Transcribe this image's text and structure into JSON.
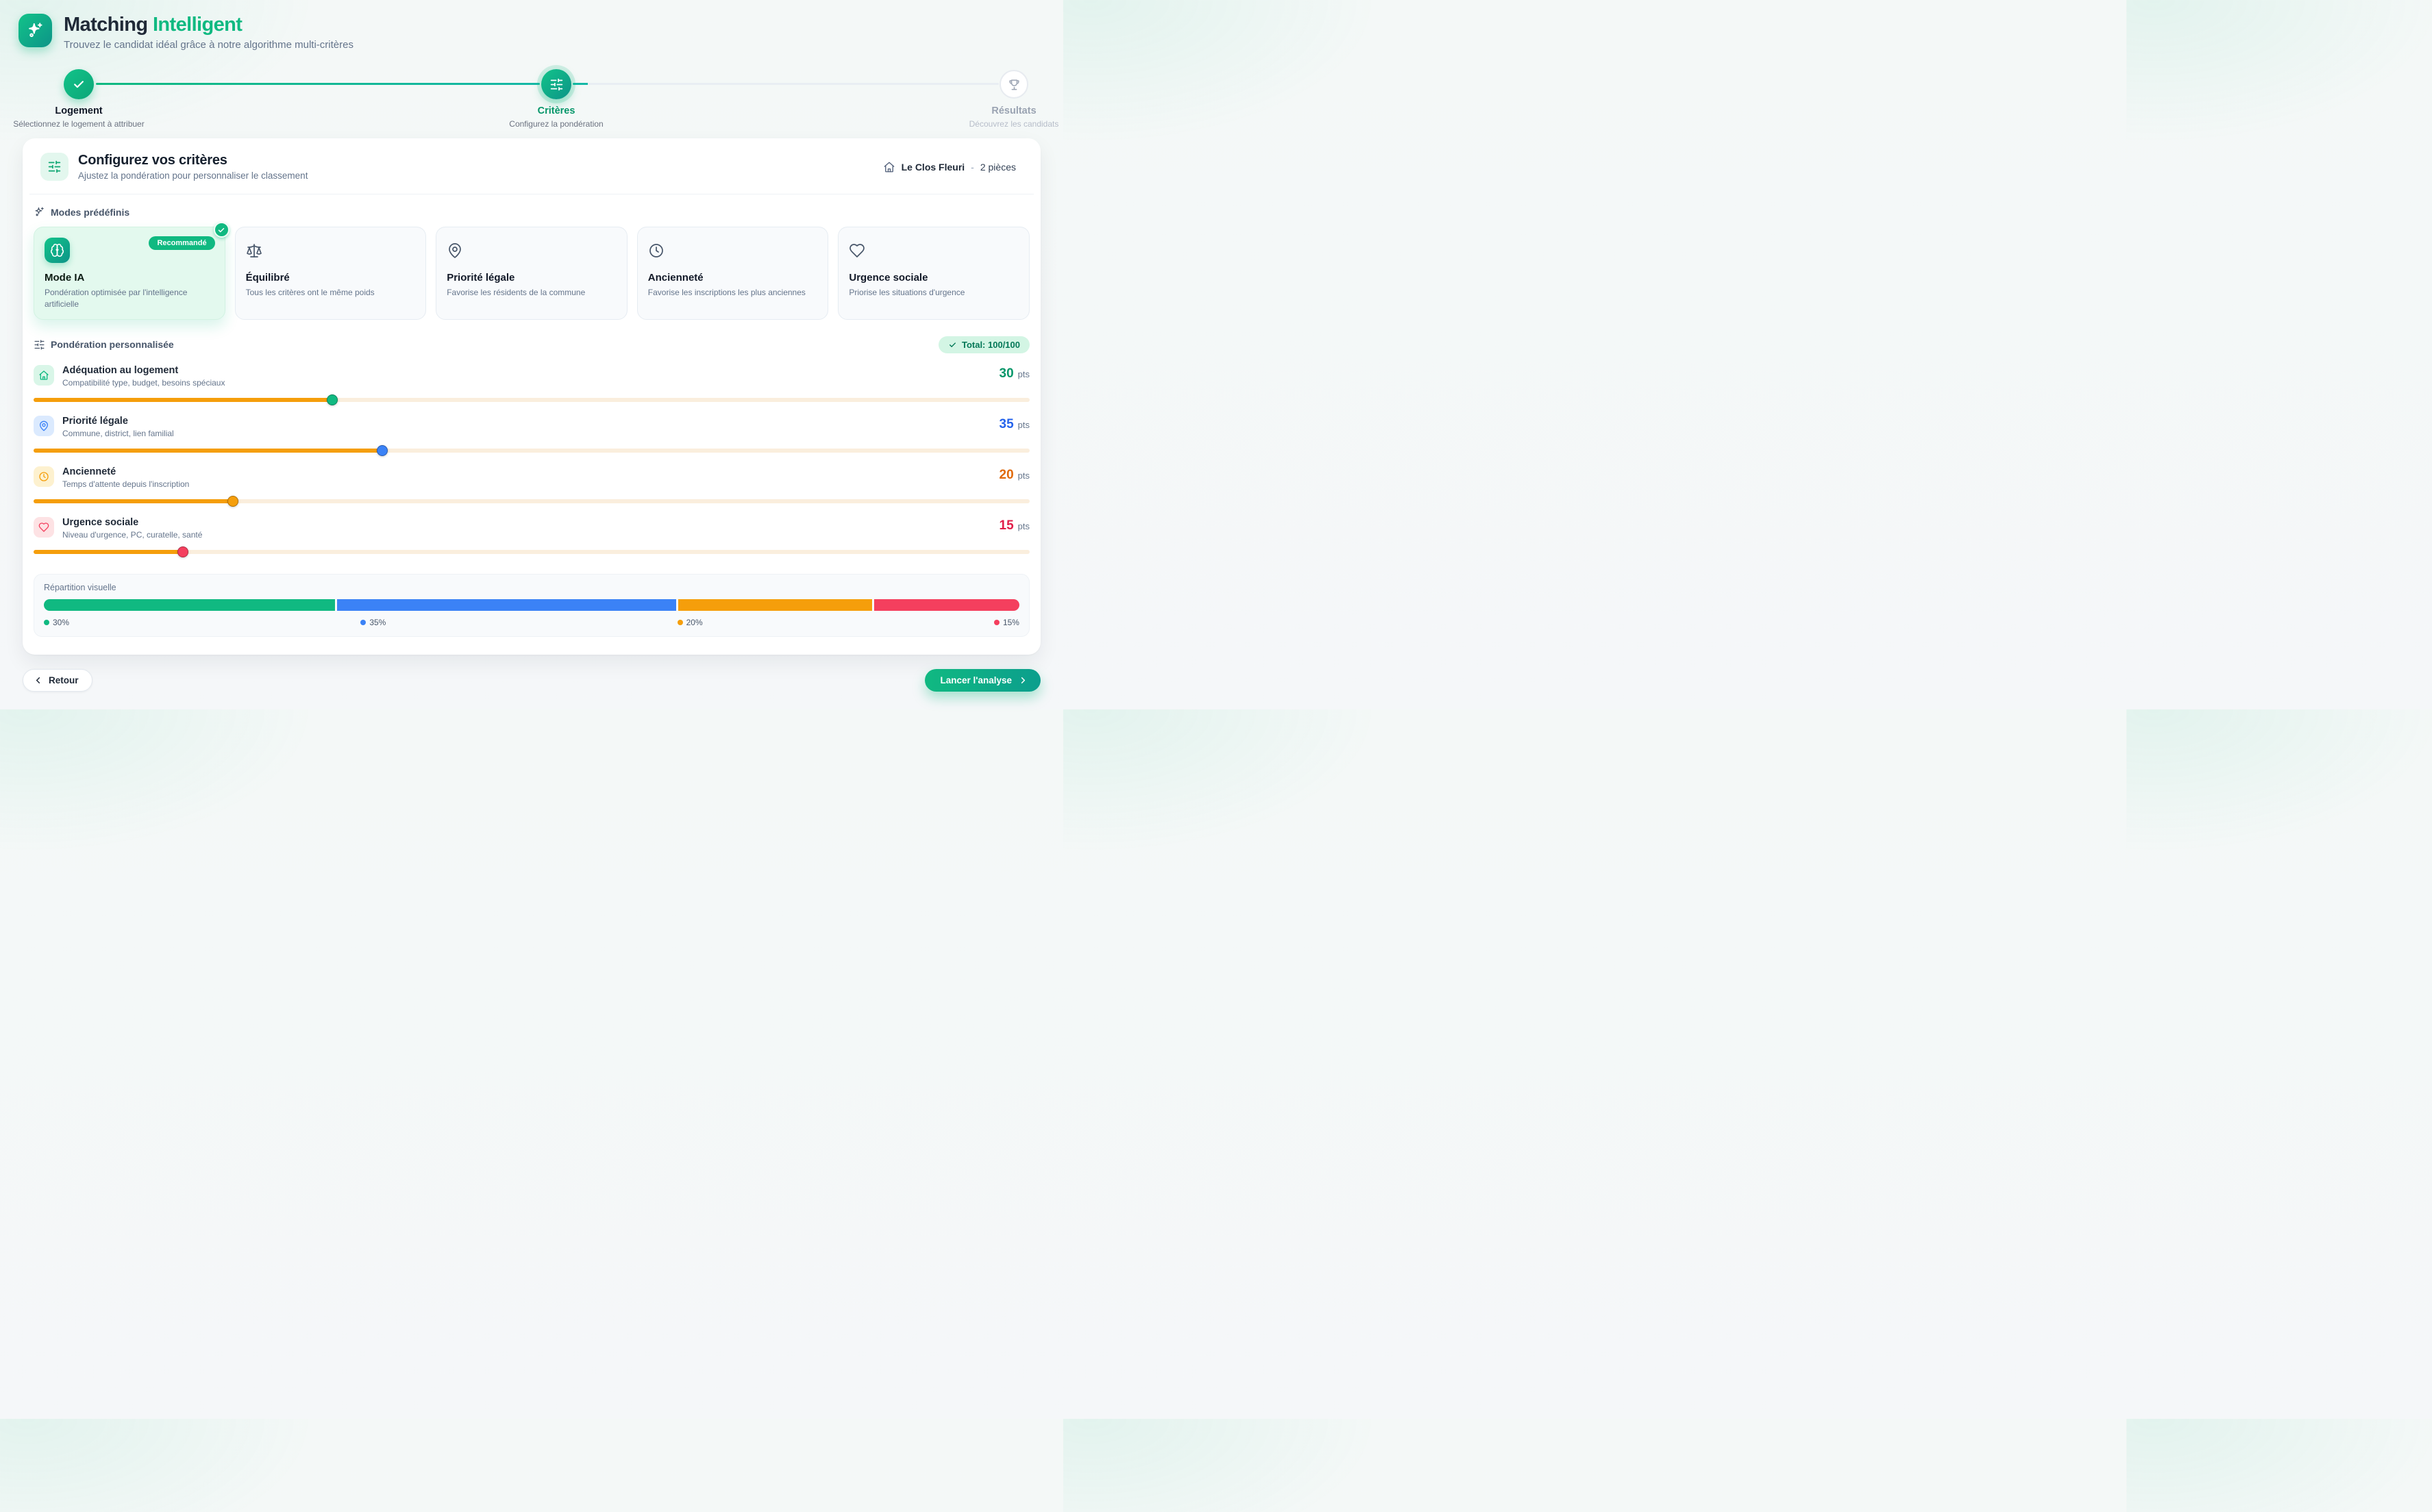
{
  "header": {
    "title_primary": "Matching",
    "title_accent": "Intelligent",
    "subtitle": "Trouvez le candidat idéal grâce à notre algorithme multi-critères"
  },
  "steps": [
    {
      "label": "Logement",
      "sublabel": "Sélectionnez le logement à attribuer",
      "state": "done",
      "icon": "check"
    },
    {
      "label": "Critères",
      "sublabel": "Configurez la pondération",
      "state": "active",
      "icon": "sliders"
    },
    {
      "label": "Résultats",
      "sublabel": "Découvrez les candidats",
      "state": "upcoming",
      "icon": "trophy"
    }
  ],
  "panel": {
    "title": "Configurez vos critères",
    "subtitle": "Ajustez la pondération pour personnaliser le classement",
    "property": {
      "name": "Le Clos Fleuri",
      "separator": "-",
      "detail": "2 pièces"
    }
  },
  "modes": {
    "section_label": "Modes prédéfinis",
    "cards": [
      {
        "title": "Mode IA",
        "description": "Pondération optimisée par l'intelligence artificielle",
        "badge": "Recommandé",
        "selected": true,
        "icon": "brain"
      },
      {
        "title": "Équilibré",
        "description": "Tous les critères ont le même poids",
        "selected": false,
        "icon": "scale"
      },
      {
        "title": "Priorité légale",
        "description": "Favorise les résidents de la commune",
        "selected": false,
        "icon": "map-pin"
      },
      {
        "title": "Ancienneté",
        "description": "Favorise les inscriptions les plus anciennes",
        "selected": false,
        "icon": "clock"
      },
      {
        "title": "Urgence sociale",
        "description": "Priorise les situations d'urgence",
        "selected": false,
        "icon": "heart"
      }
    ]
  },
  "weights": {
    "section_label": "Pondération personnalisée",
    "total_badge": "Total: 100/100",
    "unit": "pts",
    "track_fill": "#f59e0b",
    "track_bg": "#faeedd",
    "criteria": [
      {
        "title": "Adéquation au logement",
        "description": "Compatibilité type, budget, besoins spéciaux",
        "value": "30",
        "percent": 30,
        "color": "#10b981",
        "value_color": "#059669",
        "icon_bg": "#d9f6e8",
        "icon": "home"
      },
      {
        "title": "Priorité légale",
        "description": "Commune, district, lien familial",
        "value": "35",
        "percent": 35,
        "color": "#3b82f6",
        "value_color": "#2563eb",
        "icon_bg": "#dbeafe",
        "icon": "map-pin"
      },
      {
        "title": "Ancienneté",
        "description": "Temps d'attente depuis l'inscription",
        "value": "20",
        "percent": 20,
        "color": "#f59e0b",
        "value_color": "#e0690b",
        "icon_bg": "#fdf1cf",
        "icon": "clock"
      },
      {
        "title": "Urgence sociale",
        "description": "Niveau d'urgence, PC, curatelle, santé",
        "value": "15",
        "percent": 15,
        "color": "#f43f5e",
        "value_color": "#e11d48",
        "icon_bg": "#fde2e4",
        "icon": "heart"
      }
    ]
  },
  "distribution": {
    "label": "Répartition visuelle",
    "segments": [
      {
        "label": "30%",
        "percent": 30,
        "color": "#10b981"
      },
      {
        "label": "35%",
        "percent": 35,
        "color": "#3b82f6"
      },
      {
        "label": "20%",
        "percent": 20,
        "color": "#f59e0b"
      },
      {
        "label": "15%",
        "percent": 15,
        "color": "#f43f5e"
      }
    ]
  },
  "footer": {
    "back_label": "Retour",
    "submit_label": "Lancer l'analyse"
  }
}
